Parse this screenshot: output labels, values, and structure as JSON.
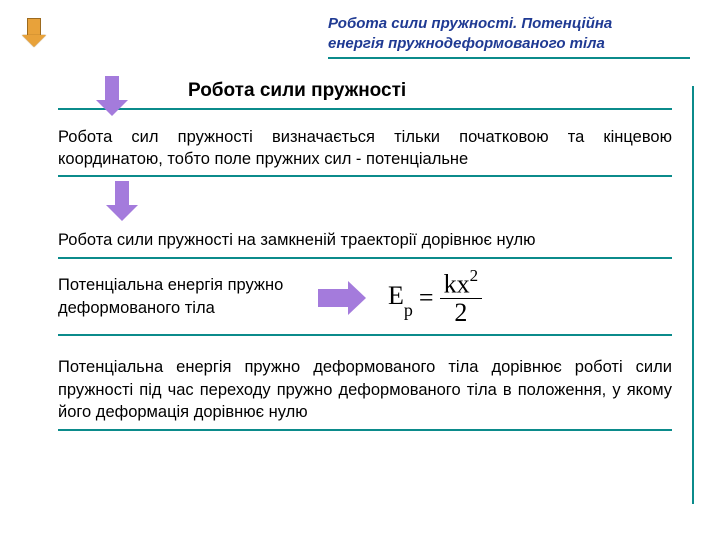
{
  "colors": {
    "teal": "#0b8b8b",
    "purple_arrow": "#a47bdc",
    "orange_arrow": "#e8a23a",
    "header_blue": "#1f3a93",
    "text": "#000000",
    "background": "#ffffff"
  },
  "typography": {
    "body_font": "Arial",
    "formula_font": "Times New Roman",
    "header_fontsize_pt": 15,
    "title_fontsize_pt": 19,
    "body_fontsize_pt": 16.5,
    "formula_fontsize_pt": 26
  },
  "header": {
    "line1": "Робота сили пружності. Потенційна",
    "line2": "енергія пружнодеформованого тіла"
  },
  "title": "Робота сили пружності",
  "para1": "Робота сил пружності  визначається тільки початковою та кінцевою координатою, тобто поле пружних сил - потенціальне",
  "para2": "Робота сили пружності на замкненій траекторії дорівнює нулю",
  "para3": "Потенціальна енергія пружно деформованого тіла",
  "para4": "Потенціальна енергія пружно деформованого тіла дорівнює роботі сили пружності під час переходу пружно деформованого тіла в положення, у якому його деформація дорівнює нулю",
  "formula": {
    "lhs_base": "E",
    "lhs_sub": "p",
    "eq": "=",
    "num_left": "kx",
    "num_sup": "2",
    "den": "2"
  }
}
